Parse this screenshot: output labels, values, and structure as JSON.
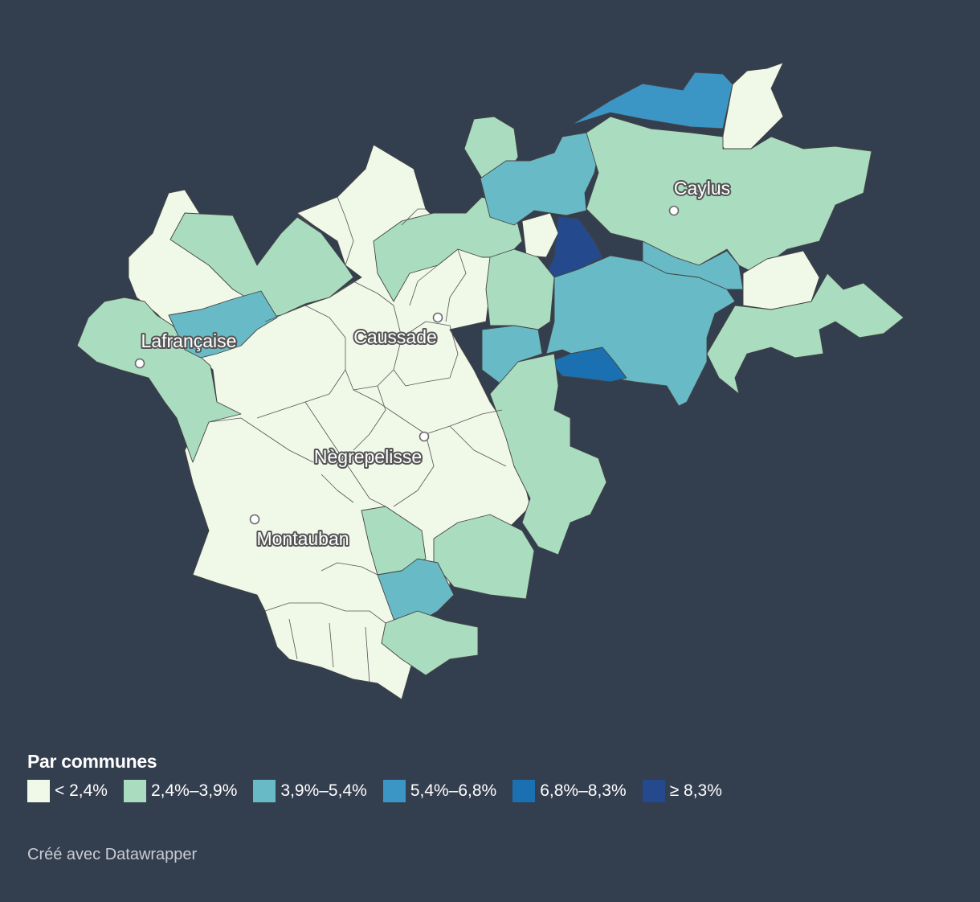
{
  "legend": {
    "title": "Par communes",
    "items": [
      {
        "label": "< 2,4%",
        "color": "#f0f8e8"
      },
      {
        "label": "2,4%–3,9%",
        "color": "#aadcc0"
      },
      {
        "label": "3,9%–5,4%",
        "color": "#68bbc6"
      },
      {
        "label": "5,4%–6,8%",
        "color": "#3b96c6"
      },
      {
        "label": "6,8%–8,3%",
        "color": "#1a70b0"
      },
      {
        "label": "≥ 8,3%",
        "color": "#24498d"
      }
    ]
  },
  "cities": [
    {
      "name": "Caylus"
    },
    {
      "name": "Lafrançaise"
    },
    {
      "name": "Caussade"
    },
    {
      "name": "Nègrepelisse"
    },
    {
      "name": "Montauban"
    }
  ],
  "footer": "Créé avec Datawrapper"
}
